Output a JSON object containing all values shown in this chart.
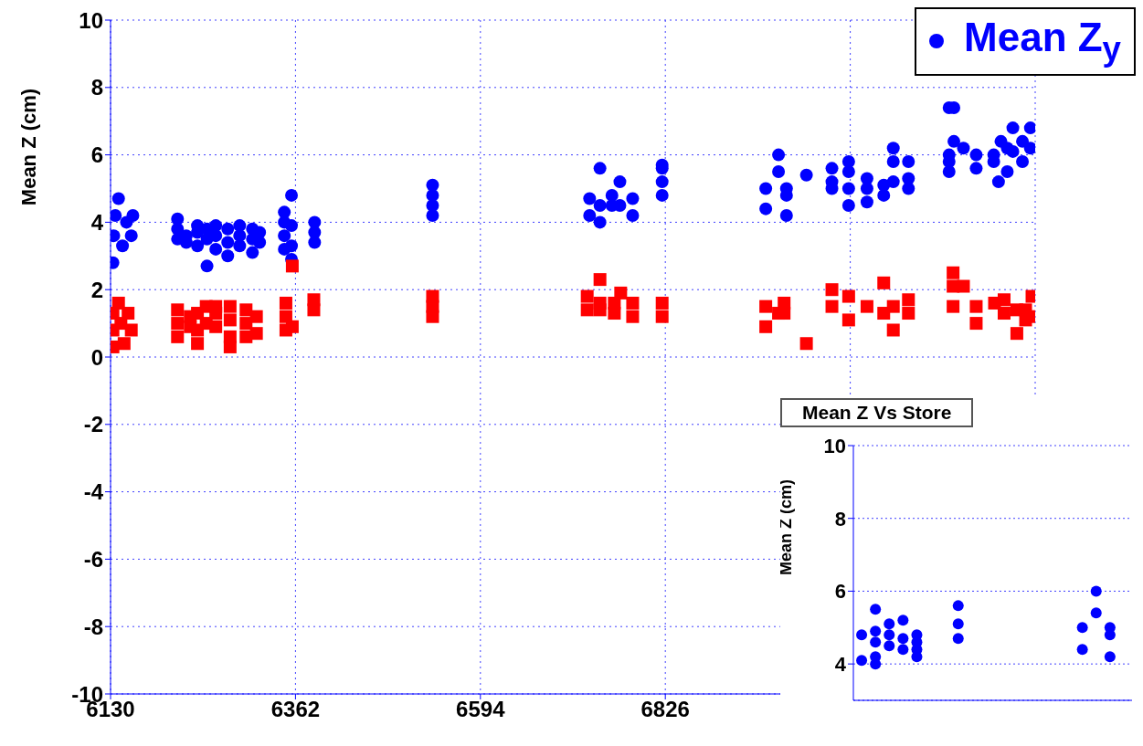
{
  "chart_data": [
    {
      "type": "scatter",
      "ylabel": "Mean Z (cm)",
      "xlim": [
        6130,
        7290
      ],
      "xticks": [
        6130,
        6362,
        6594,
        6826,
        {
          "value": 7058,
          "label": null
        }
      ],
      "ylim": [
        -10,
        10
      ],
      "yticks": [
        -10,
        -8,
        -6,
        -4,
        -2,
        0,
        2,
        4,
        6,
        8,
        10
      ],
      "grid": true,
      "legend": "top right",
      "series": [
        {
          "name": "Mean Z$_{y}$",
          "color": "#0000ff",
          "marker": "circle",
          "x": [
            6133,
            6134,
            6136,
            6140,
            6145,
            6150,
            6156,
            6158,
            6214,
            6214,
            6214,
            6225,
            6225,
            6239,
            6239,
            6239,
            6251,
            6251,
            6251,
            6262,
            6262,
            6262,
            6277,
            6277,
            6277,
            6292,
            6292,
            6292,
            6308,
            6308,
            6308,
            6317,
            6317,
            6348,
            6348,
            6348,
            6348,
            6357,
            6357,
            6357,
            6357,
            6386,
            6386,
            6386,
            6534,
            6534,
            6534,
            6534,
            6731,
            6731,
            6744,
            6744,
            6744,
            6759,
            6759,
            6769,
            6769,
            6785,
            6785,
            6822,
            6822,
            6822,
            6822,
            6952,
            6952,
            6968,
            6968,
            6978,
            6978,
            6978,
            7003,
            7035,
            7035,
            7035,
            7056,
            7056,
            7056,
            7056,
            7079,
            7079,
            7079,
            7100,
            7100,
            7112,
            7112,
            7112,
            7131,
            7131,
            7131,
            7182,
            7182,
            7182,
            7182,
            7188,
            7188,
            7200,
            7216,
            7216,
            7238,
            7238,
            7244,
            7247,
            7255,
            7255,
            7262,
            7262,
            7274,
            7274,
            7284,
            7284
          ],
          "values": [
            2.8,
            3.6,
            4.2,
            4.7,
            3.3,
            4.0,
            3.6,
            4.2,
            3.5,
            3.8,
            4.1,
            3.4,
            3.6,
            3.3,
            3.7,
            3.9,
            2.7,
            3.5,
            3.8,
            3.2,
            3.6,
            3.9,
            3.0,
            3.4,
            3.8,
            3.3,
            3.6,
            3.9,
            3.1,
            3.5,
            3.8,
            3.4,
            3.7,
            3.2,
            3.6,
            4.0,
            4.3,
            2.9,
            3.3,
            3.9,
            4.8,
            3.4,
            3.7,
            4.0,
            4.2,
            4.5,
            4.8,
            5.1,
            4.2,
            4.7,
            4.0,
            4.5,
            5.6,
            4.5,
            4.8,
            5.2,
            4.5,
            4.2,
            4.7,
            4.8,
            5.2,
            5.6,
            5.7,
            5.0,
            4.4,
            6.0,
            5.5,
            5.0,
            4.8,
            4.2,
            5.4,
            5.6,
            5.2,
            5.0,
            5.8,
            5.5,
            5.0,
            4.5,
            5.3,
            5.0,
            4.6,
            5.1,
            4.8,
            6.2,
            5.8,
            5.2,
            5.8,
            5.3,
            5.0,
            7.4,
            6.0,
            5.8,
            5.5,
            7.4,
            6.4,
            6.2,
            6.0,
            5.6,
            6.0,
            5.8,
            5.2,
            6.4,
            6.2,
            5.5,
            6.8,
            6.1,
            6.4,
            5.8,
            6.8,
            6.2
          ]
        },
        {
          "color": "#ff0000",
          "marker": "square",
          "x": [
            6133,
            6133,
            6133,
            6140,
            6143,
            6147,
            6152,
            6156,
            6214,
            6214,
            6214,
            6230,
            6230,
            6239,
            6239,
            6239,
            6250,
            6250,
            6262,
            6262,
            6262,
            6280,
            6280,
            6280,
            6280,
            6300,
            6300,
            6300,
            6313,
            6313,
            6350,
            6350,
            6350,
            6358,
            6358,
            6385,
            6385,
            6534,
            6534,
            6534,
            6728,
            6728,
            6744,
            6744,
            6744,
            6762,
            6762,
            6770,
            6785,
            6785,
            6822,
            6822,
            6952,
            6952,
            6968,
            6975,
            6975,
            7003,
            7035,
            7035,
            7056,
            7056,
            7079,
            7100,
            7100,
            7112,
            7112,
            7131,
            7131,
            7187,
            7187,
            7187,
            7200,
            7216,
            7216,
            7239,
            7251,
            7251,
            7267,
            7267,
            7278,
            7278,
            7286,
            7286
          ],
          "values": [
            0.3,
            0.8,
            1.3,
            1.6,
            1.0,
            0.4,
            1.3,
            0.8,
            0.6,
            1.0,
            1.4,
            0.9,
            1.2,
            0.4,
            0.8,
            1.3,
            1.0,
            1.5,
            0.9,
            1.3,
            1.5,
            0.3,
            0.6,
            1.1,
            1.5,
            0.6,
            1.0,
            1.4,
            0.7,
            1.2,
            0.8,
            1.2,
            1.6,
            0.9,
            2.7,
            1.4,
            1.7,
            1.2,
            1.5,
            1.8,
            1.8,
            1.4,
            2.3,
            1.6,
            1.4,
            1.3,
            1.6,
            1.9,
            1.2,
            1.6,
            1.2,
            1.6,
            1.5,
            0.9,
            1.3,
            1.6,
            1.3,
            0.4,
            2.0,
            1.5,
            1.8,
            1.1,
            1.5,
            2.2,
            1.3,
            1.5,
            0.8,
            1.7,
            1.3,
            2.5,
            2.1,
            1.5,
            2.1,
            1.5,
            1.0,
            1.6,
            1.7,
            1.3,
            1.4,
            0.7,
            1.4,
            1.1,
            1.8,
            1.2
          ]
        }
      ]
    },
    {
      "type": "scatter",
      "title": "Mean Z Vs Store",
      "ylabel": "Mean Z (cm)",
      "ylim": [
        3,
        10
      ],
      "yticks": [
        4,
        6,
        8,
        10
      ],
      "grid": "y",
      "tick_labels": "y",
      "marker": "circle",
      "categories": [
        null,
        null,
        null,
        null,
        null,
        null,
        null,
        null,
        null,
        null,
        null,
        null,
        null,
        null,
        null,
        null,
        null,
        null,
        null,
        null
      ],
      "series": [
        {
          "color": "#0000ff",
          "values": [
            null,
            5.5,
            5.1,
            5.2,
            4.8,
            null,
            null,
            null,
            null,
            null,
            null,
            null,
            null,
            null,
            null,
            null,
            5.0,
            6.0,
            5.0,
            null
          ]
        },
        {
          "color": "#0000ff",
          "values": [
            4.8,
            4.9,
            4.8,
            4.7,
            4.6,
            null,
            null,
            5.6,
            null,
            null,
            null,
            null,
            null,
            null,
            null,
            null,
            4.4,
            5.4,
            4.8,
            null
          ]
        },
        {
          "color": "#0000ff",
          "values": [
            null,
            4.6,
            4.5,
            4.4,
            4.4,
            null,
            null,
            5.1,
            null,
            null,
            null,
            null,
            null,
            null,
            null,
            null,
            null,
            null,
            4.2,
            null
          ]
        },
        {
          "color": "#0000ff",
          "values": [
            4.1,
            null,
            null,
            null,
            4.2,
            null,
            null,
            4.7,
            null,
            null,
            null,
            null,
            null,
            null,
            null,
            null,
            null,
            null,
            null,
            null
          ]
        },
        {
          "color": "#0000ff",
          "values": [
            null,
            4.2,
            null,
            null,
            null,
            null,
            null,
            null,
            null,
            null,
            null,
            null,
            null,
            null,
            null,
            null,
            null,
            null,
            null,
            null
          ]
        },
        {
          "color": "#0000ff",
          "values": [
            null,
            4.0,
            null,
            null,
            null,
            null,
            null,
            null,
            null,
            null,
            null,
            null,
            null,
            null,
            null,
            null,
            null,
            null,
            null,
            null
          ]
        }
      ]
    }
  ]
}
